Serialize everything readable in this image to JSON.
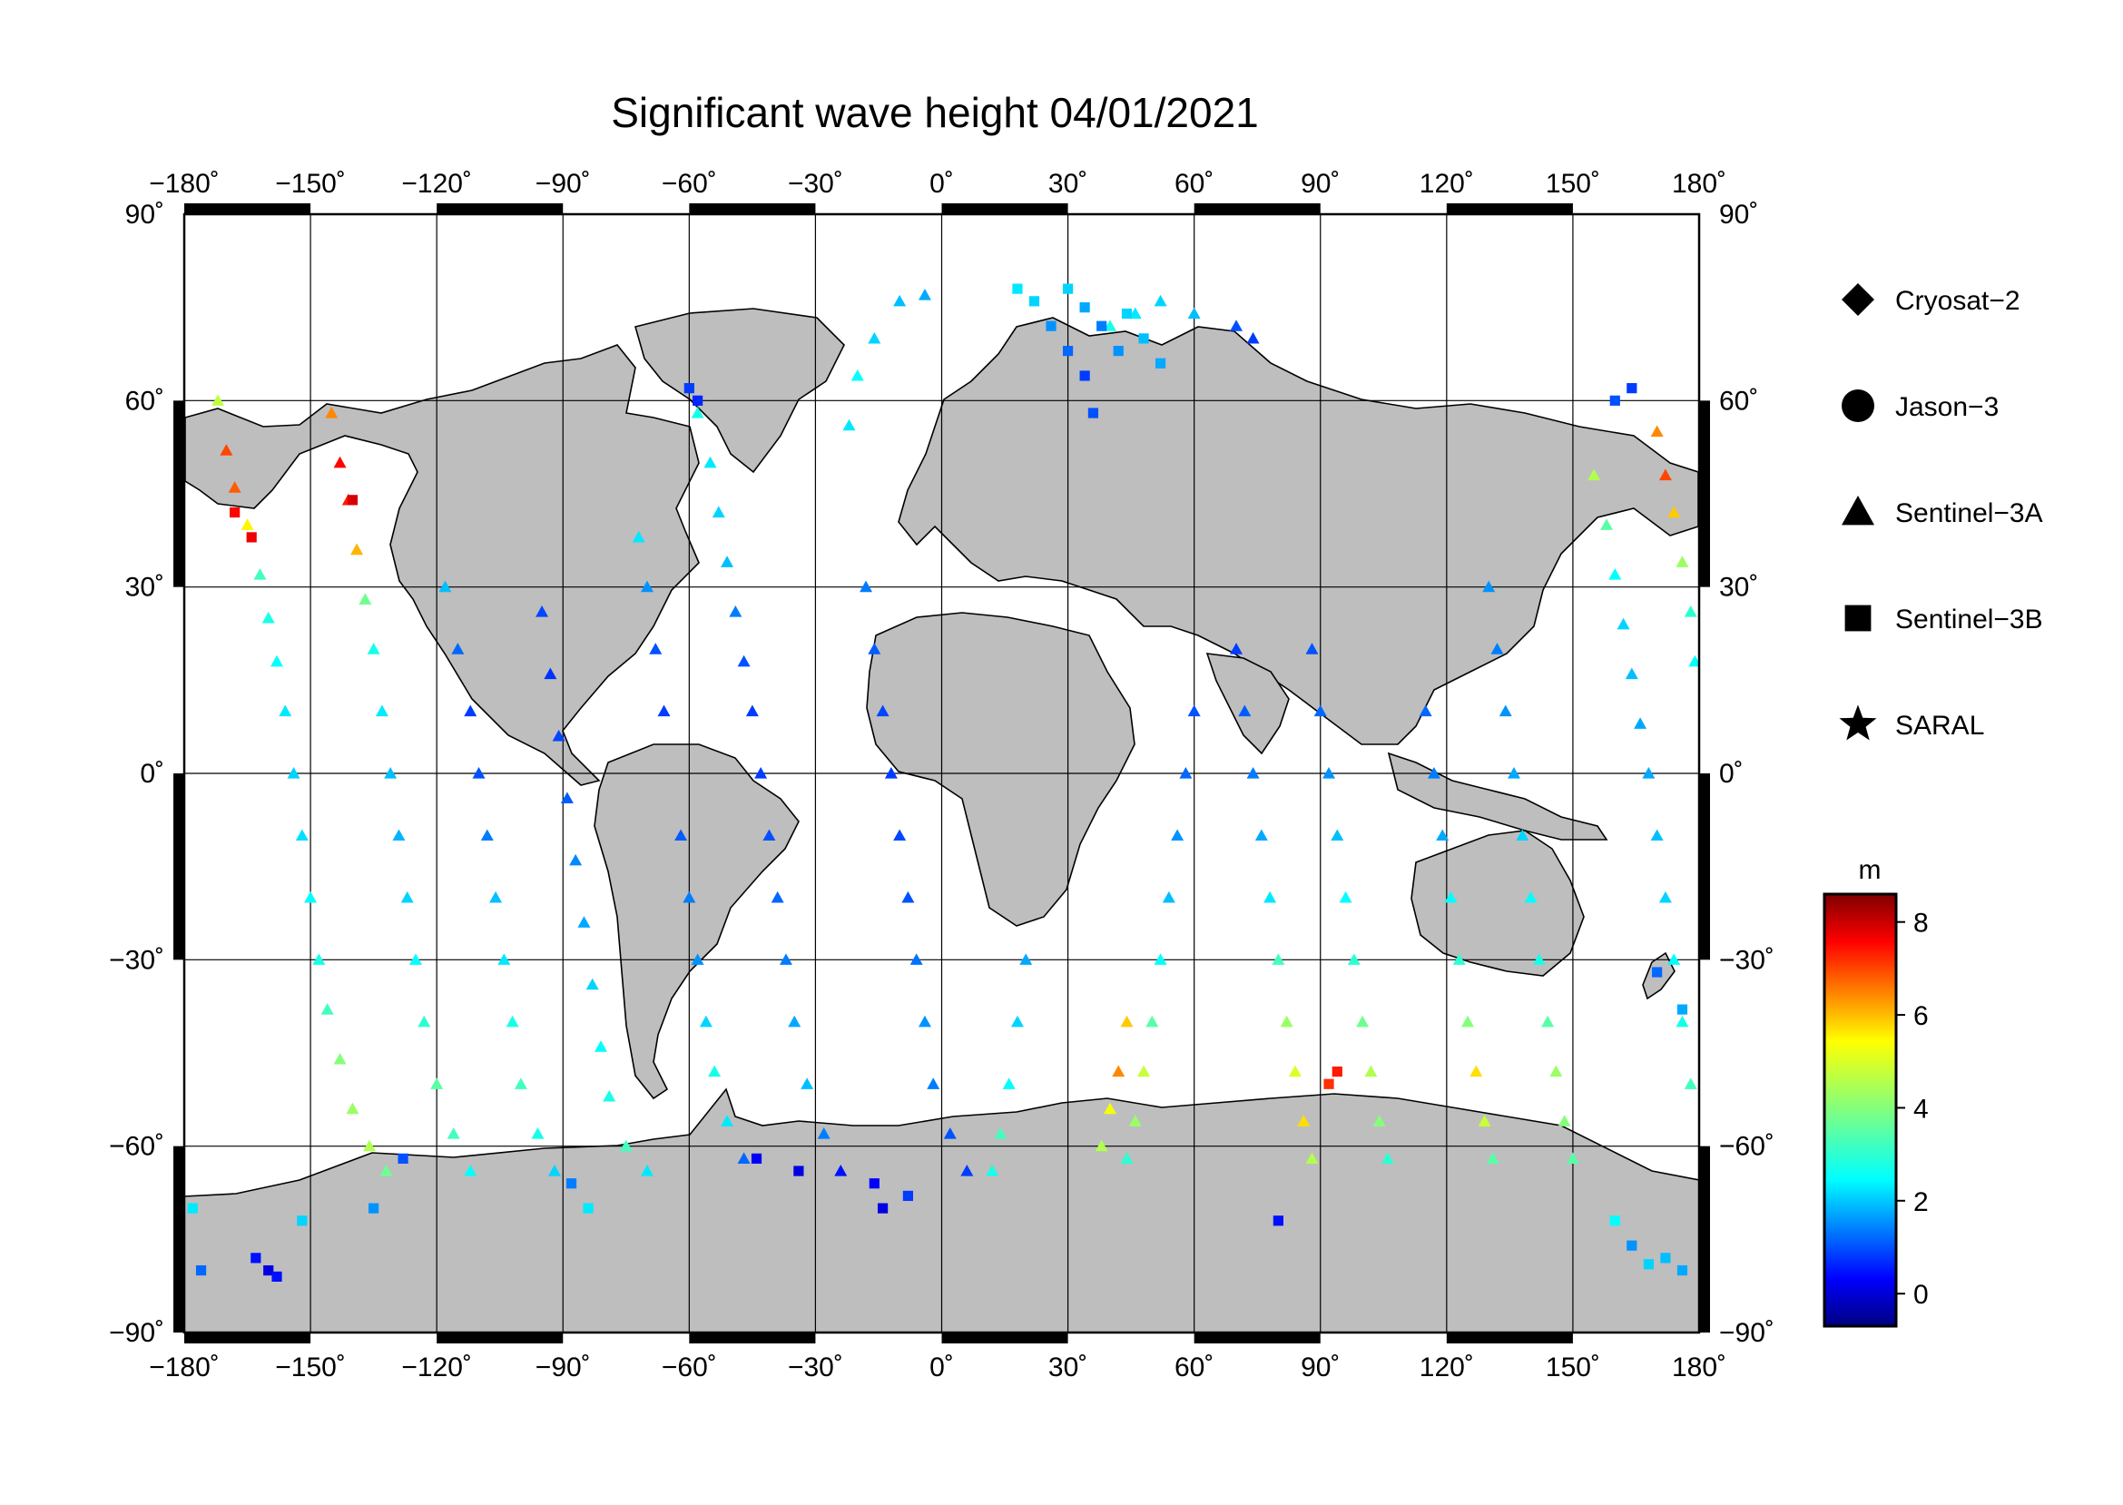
{
  "title": "Significant wave height 04/01/2021",
  "map": {
    "lon_range": [
      -180,
      180
    ],
    "lat_range": [
      -90,
      90
    ],
    "lon_ticks": [
      -180,
      -150,
      -120,
      -90,
      -60,
      -30,
      0,
      30,
      60,
      90,
      120,
      150,
      180
    ],
    "lat_ticks": [
      -90,
      -60,
      -30,
      0,
      30,
      60,
      90
    ],
    "lon_labels": [
      "−180˚",
      "−150˚",
      "−120˚",
      "−90˚",
      "−60˚",
      "−30˚",
      "0˚",
      "30˚",
      "60˚",
      "90˚",
      "120˚",
      "150˚",
      "180˚"
    ],
    "lat_labels": [
      "−90˚",
      "−60˚",
      "−30˚",
      "0˚",
      "30˚",
      "60˚",
      "90˚"
    ],
    "grid": true,
    "land_color": "#bebebe",
    "ocean_color": "#ffffff"
  },
  "legend": {
    "placement": "right",
    "items": [
      {
        "label": "Cryosat−2",
        "symbol": "diamond"
      },
      {
        "label": "Jason−3",
        "symbol": "circle"
      },
      {
        "label": "Sentinel−3A",
        "symbol": "triangle"
      },
      {
        "label": "Sentinel−3B",
        "symbol": "square"
      },
      {
        "label": "SARAL",
        "symbol": "star"
      }
    ]
  },
  "colorbar": {
    "unit": "m",
    "min": -0.7,
    "max": 8.6,
    "ticks": [
      0,
      2,
      4,
      6,
      8
    ],
    "tick_labels": [
      "0",
      "2",
      "4",
      "6",
      "8"
    ],
    "colormap": "jet"
  },
  "chart_data": {
    "type": "scatter",
    "title": "Significant wave height 04/01/2021",
    "xlabel": "",
    "ylabel": "",
    "xlim": [
      -180,
      180
    ],
    "ylim": [
      -90,
      90
    ],
    "value_unit": "m",
    "value_range": [
      -0.7,
      8.6
    ],
    "series": [
      {
        "name": "Sentinel−3A",
        "symbol": "triangle",
        "points": [
          [
            -172,
            60,
            4.5
          ],
          [
            -170,
            52,
            6.8
          ],
          [
            -168,
            46,
            6.6
          ],
          [
            -165,
            40,
            5.2
          ],
          [
            -162,
            32,
            3.4
          ],
          [
            -160,
            25,
            3.0
          ],
          [
            -158,
            18,
            2.8
          ],
          [
            -156,
            10,
            2.6
          ],
          [
            -154,
            0,
            2.4
          ],
          [
            -152,
            -10,
            2.5
          ],
          [
            -150,
            -20,
            2.8
          ],
          [
            -148,
            -30,
            3.0
          ],
          [
            -146,
            -38,
            3.4
          ],
          [
            -143,
            -46,
            4.0
          ],
          [
            -140,
            -54,
            4.2
          ],
          [
            -136,
            -60,
            4.4
          ],
          [
            -132,
            -64,
            3.8
          ],
          [
            -145,
            58,
            6.2
          ],
          [
            -143,
            50,
            7.4
          ],
          [
            -141,
            44,
            7.2
          ],
          [
            -139,
            36,
            5.8
          ],
          [
            -137,
            28,
            3.8
          ],
          [
            -135,
            20,
            3.0
          ],
          [
            -133,
            10,
            2.6
          ],
          [
            -131,
            0,
            2.2
          ],
          [
            -129,
            -10,
            2.1
          ],
          [
            -127,
            -20,
            2.4
          ],
          [
            -125,
            -30,
            2.8
          ],
          [
            -123,
            -40,
            3.2
          ],
          [
            -120,
            -50,
            3.6
          ],
          [
            -116,
            -58,
            3.4
          ],
          [
            -112,
            -64,
            2.8
          ],
          [
            -118,
            30,
            2.2
          ],
          [
            -115,
            20,
            1.4
          ],
          [
            -112,
            10,
            1.0
          ],
          [
            -110,
            0,
            1.2
          ],
          [
            -108,
            -10,
            1.6
          ],
          [
            -106,
            -20,
            2.2
          ],
          [
            -104,
            -30,
            2.6
          ],
          [
            -102,
            -40,
            3.0
          ],
          [
            -100,
            -50,
            3.4
          ],
          [
            -96,
            -58,
            3.0
          ],
          [
            -92,
            -64,
            2.4
          ],
          [
            -95,
            26,
            1.1
          ],
          [
            -93,
            16,
            0.9
          ],
          [
            -91,
            6,
            1.1
          ],
          [
            -89,
            -4,
            1.3
          ],
          [
            -87,
            -14,
            1.7
          ],
          [
            -85,
            -24,
            2.0
          ],
          [
            -83,
            -34,
            2.4
          ],
          [
            -81,
            -44,
            2.8
          ],
          [
            -79,
            -52,
            3.0
          ],
          [
            -75,
            -60,
            3.4
          ],
          [
            -70,
            -64,
            2.6
          ],
          [
            -72,
            38,
            2.6
          ],
          [
            -70,
            30,
            1.8
          ],
          [
            -68,
            20,
            1.2
          ],
          [
            -66,
            10,
            1.0
          ],
          [
            -62,
            -10,
            1.3
          ],
          [
            -60,
            -20,
            1.6
          ],
          [
            -58,
            -30,
            1.8
          ],
          [
            -56,
            -40,
            2.4
          ],
          [
            -54,
            -48,
            3.0
          ],
          [
            -51,
            -56,
            2.6
          ],
          [
            -47,
            -62,
            1.4
          ],
          [
            -58,
            58,
            3.0
          ],
          [
            -55,
            50,
            2.6
          ],
          [
            -53,
            42,
            2.4
          ],
          [
            -51,
            34,
            2.2
          ],
          [
            -49,
            26,
            1.6
          ],
          [
            -47,
            18,
            1.2
          ],
          [
            -45,
            10,
            1.0
          ],
          [
            -43,
            0,
            1.0
          ],
          [
            -41,
            -10,
            1.2
          ],
          [
            -39,
            -20,
            1.4
          ],
          [
            -37,
            -30,
            1.6
          ],
          [
            -35,
            -40,
            2.0
          ],
          [
            -32,
            -50,
            2.2
          ],
          [
            -28,
            -58,
            1.6
          ],
          [
            -24,
            -64,
            0.6
          ],
          [
            -22,
            56,
            2.6
          ],
          [
            -20,
            64,
            2.8
          ],
          [
            -16,
            70,
            2.4
          ],
          [
            -10,
            76,
            2.2
          ],
          [
            -4,
            77,
            2.0
          ],
          [
            -18,
            30,
            1.6
          ],
          [
            -16,
            20,
            1.3
          ],
          [
            -14,
            10,
            1.1
          ],
          [
            -12,
            0,
            1.0
          ],
          [
            -10,
            -10,
            1.1
          ],
          [
            -8,
            -20,
            1.2
          ],
          [
            -6,
            -30,
            1.5
          ],
          [
            -4,
            -40,
            1.8
          ],
          [
            -2,
            -50,
            1.6
          ],
          [
            2,
            -58,
            1.2
          ],
          [
            6,
            -64,
            1.0
          ],
          [
            20,
            -30,
            2.0
          ],
          [
            18,
            -40,
            2.4
          ],
          [
            16,
            -50,
            2.8
          ],
          [
            14,
            -58,
            3.4
          ],
          [
            12,
            -64,
            3.0
          ],
          [
            44,
            -40,
            5.6
          ],
          [
            42,
            -48,
            6.2
          ],
          [
            40,
            -54,
            5.0
          ],
          [
            38,
            -60,
            4.4
          ],
          [
            60,
            10,
            1.2
          ],
          [
            58,
            0,
            1.4
          ],
          [
            56,
            -10,
            1.8
          ],
          [
            54,
            -20,
            2.2
          ],
          [
            52,
            -30,
            2.8
          ],
          [
            50,
            -40,
            3.6
          ],
          [
            48,
            -48,
            4.6
          ],
          [
            46,
            -56,
            4.2
          ],
          [
            44,
            -62,
            3.2
          ],
          [
            70,
            20,
            1.0
          ],
          [
            72,
            10,
            1.3
          ],
          [
            74,
            0,
            1.6
          ],
          [
            76,
            -10,
            2.0
          ],
          [
            78,
            -20,
            2.6
          ],
          [
            80,
            -30,
            3.4
          ],
          [
            82,
            -40,
            4.2
          ],
          [
            84,
            -48,
            4.8
          ],
          [
            86,
            -56,
            5.4
          ],
          [
            88,
            -62,
            4.4
          ],
          [
            88,
            20,
            1.2
          ],
          [
            90,
            10,
            1.4
          ],
          [
            92,
            0,
            1.8
          ],
          [
            94,
            -10,
            2.2
          ],
          [
            96,
            -20,
            2.8
          ],
          [
            98,
            -30,
            3.2
          ],
          [
            100,
            -40,
            3.8
          ],
          [
            102,
            -48,
            4.4
          ],
          [
            104,
            -56,
            4.0
          ],
          [
            106,
            -62,
            3.2
          ],
          [
            115,
            10,
            1.4
          ],
          [
            117,
            0,
            1.6
          ],
          [
            119,
            -10,
            2.0
          ],
          [
            121,
            -20,
            2.8
          ],
          [
            123,
            -30,
            3.2
          ],
          [
            125,
            -40,
            4.0
          ],
          [
            127,
            -48,
            5.4
          ],
          [
            129,
            -56,
            4.6
          ],
          [
            131,
            -62,
            3.6
          ],
          [
            130,
            30,
            1.8
          ],
          [
            132,
            20,
            1.6
          ],
          [
            134,
            10,
            1.8
          ],
          [
            136,
            0,
            2.0
          ],
          [
            138,
            -10,
            2.4
          ],
          [
            140,
            -20,
            2.8
          ],
          [
            142,
            -30,
            3.0
          ],
          [
            144,
            -40,
            3.6
          ],
          [
            146,
            -48,
            4.2
          ],
          [
            148,
            -56,
            4.0
          ],
          [
            150,
            -62,
            3.6
          ],
          [
            155,
            48,
            4.4
          ],
          [
            158,
            40,
            3.6
          ],
          [
            160,
            32,
            2.8
          ],
          [
            162,
            24,
            2.4
          ],
          [
            164,
            16,
            2.2
          ],
          [
            166,
            8,
            2.0
          ],
          [
            168,
            0,
            2.0
          ],
          [
            170,
            -10,
            2.2
          ],
          [
            172,
            -20,
            2.4
          ],
          [
            174,
            -30,
            2.8
          ],
          [
            176,
            -40,
            3.0
          ],
          [
            178,
            -50,
            3.4
          ],
          [
            170,
            55,
            6.2
          ],
          [
            172,
            48,
            6.8
          ],
          [
            174,
            42,
            5.6
          ],
          [
            176,
            34,
            4.2
          ],
          [
            178,
            26,
            3.2
          ],
          [
            179,
            18,
            2.8
          ],
          [
            40,
            72,
            3.0
          ],
          [
            46,
            74,
            2.6
          ],
          [
            52,
            76,
            2.4
          ],
          [
            60,
            74,
            2.2
          ],
          [
            70,
            72,
            1.2
          ],
          [
            74,
            70,
            1.0
          ]
        ]
      },
      {
        "name": "Sentinel−3B",
        "symbol": "square",
        "points": [
          [
            -178,
            -70,
            2.6
          ],
          [
            -176,
            -80,
            1.4
          ],
          [
            -163,
            -78,
            0.6
          ],
          [
            -160,
            -80,
            0.2
          ],
          [
            -158,
            -81,
            0.6
          ],
          [
            -152,
            -72,
            2.4
          ],
          [
            -135,
            -70,
            1.8
          ],
          [
            -128,
            -62,
            1.2
          ],
          [
            -88,
            -66,
            1.6
          ],
          [
            -84,
            -70,
            2.6
          ],
          [
            -44,
            -62,
            0.4
          ],
          [
            -34,
            -64,
            0.2
          ],
          [
            -16,
            -66,
            0.4
          ],
          [
            -14,
            -70,
            0.2
          ],
          [
            -8,
            -68,
            1.0
          ],
          [
            -60,
            62,
            1.0
          ],
          [
            -58,
            60,
            0.8
          ],
          [
            -168,
            42,
            7.4
          ],
          [
            -164,
            38,
            7.6
          ],
          [
            -140,
            44,
            7.8
          ],
          [
            18,
            78,
            2.6
          ],
          [
            22,
            76,
            2.4
          ],
          [
            26,
            72,
            1.8
          ],
          [
            30,
            68,
            1.4
          ],
          [
            34,
            64,
            1.0
          ],
          [
            36,
            58,
            1.2
          ],
          [
            30,
            78,
            2.4
          ],
          [
            34,
            75,
            2.0
          ],
          [
            38,
            72,
            1.6
          ],
          [
            42,
            68,
            1.8
          ],
          [
            44,
            74,
            2.4
          ],
          [
            48,
            70,
            2.2
          ],
          [
            52,
            66,
            2.0
          ],
          [
            92,
            -50,
            7.0
          ],
          [
            94,
            -48,
            7.2
          ],
          [
            160,
            -72,
            2.8
          ],
          [
            164,
            -76,
            1.8
          ],
          [
            168,
            -79,
            2.4
          ],
          [
            172,
            -78,
            2.2
          ],
          [
            176,
            -80,
            2.0
          ],
          [
            160,
            60,
            1.2
          ],
          [
            164,
            62,
            1.0
          ],
          [
            170,
            -32,
            1.4
          ],
          [
            176,
            -38,
            2.0
          ],
          [
            80,
            -72,
            0.6
          ]
        ]
      }
    ]
  }
}
